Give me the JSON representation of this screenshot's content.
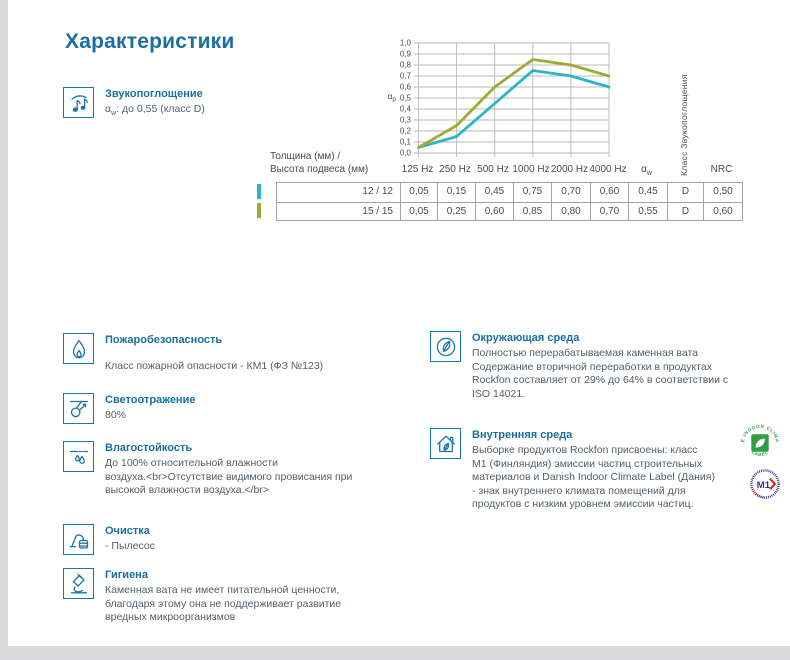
{
  "page": {
    "title": "Характеристики"
  },
  "sound": {
    "heading": "Звукопоглощение",
    "alpha_base": "α",
    "alpha_sub": "w",
    "value": ": до 0,55 (класс D)"
  },
  "chart_data": {
    "type": "line",
    "x": [
      "125 Hz",
      "250 Hz",
      "500 Hz",
      "1000 Hz",
      "2000 Hz",
      "4000 Hz"
    ],
    "series": [
      {
        "name": "12 / 12",
        "color": "#2cb6c3",
        "values": [
          0.05,
          0.15,
          0.45,
          0.75,
          0.7,
          0.6
        ]
      },
      {
        "name": "15 / 15",
        "color": "#a3a838",
        "values": [
          0.05,
          0.25,
          0.6,
          0.85,
          0.8,
          0.7
        ]
      }
    ],
    "ylabel_base": "α",
    "ylabel_sub": "p",
    "ylim": [
      0,
      1
    ],
    "ytick_step": 0.1,
    "ytick_labels": [
      "0,0",
      "0,1",
      "0,2",
      "0,3",
      "0,4",
      "0,5",
      "0,6",
      "0,7",
      "0,8",
      "0,9",
      "1,0"
    ],
    "grid": true,
    "right_axis_label": "Класс Звукопоглощения"
  },
  "table": {
    "corner_label_line1": "Толщина (мм) /",
    "corner_label_line2": "Высота подвеса (мм)",
    "headers": [
      "125 Hz",
      "250 Hz",
      "500 Hz",
      "1000 Hz",
      "2000 Hz",
      "4000 Hz"
    ],
    "alpha_header": {
      "base": "α",
      "sub": "w"
    },
    "vertical_header": "Класс Звукопоглощения",
    "nrc_header": "NRC",
    "rows": [
      {
        "label": "12 / 12",
        "color": "#2cb6c3",
        "values": [
          "0,05",
          "0,15",
          "0,45",
          "0,75",
          "0,70",
          "0,60",
          "0,45",
          "D",
          "0,50"
        ]
      },
      {
        "label": "15 / 15",
        "color": "#a3a838",
        "values": [
          "0,05",
          "0,25",
          "0,60",
          "0,85",
          "0,80",
          "0,70",
          "0,55",
          "D",
          "0,60"
        ]
      }
    ]
  },
  "sections": {
    "fire": {
      "heading": "Пожаробезопасность",
      "body": "Класс пожарной опасности - КМ1 (ФЗ №123)"
    },
    "light": {
      "heading": "Светоотражение",
      "body": "80%"
    },
    "moisture": {
      "heading": "Влагостойкость",
      "body": "До 100% относительной влажности\nвоздуха.<br>Отсутствие видимого провисания при\nвысокой влажности воздуха.</br>"
    },
    "cleaning": {
      "heading": "Очистка",
      "body": "-  Пылесос"
    },
    "hygiene": {
      "heading": "Гигиена",
      "body": "Каменная вата не имеет питательной ценности,\nблагодаря этому она не поддерживает развитие\nвредных микроорганизмов"
    },
    "environment": {
      "heading": "Окружающая среда",
      "body": "Полностью перерабатываемая каменная вата\nСодержание вторичной переработки в продуктах\nRockfon составляет от 29% до 64% в соответствии с\nISO 14021."
    },
    "indoor": {
      "heading": "Внутренняя среда",
      "body": "Выборке продуктов Rockfon присвоены: класс\nM1 (Финляндия) эмиссии частиц строительных\nматериалов и Danish Indoor Climate Label (Дания)\n- знак внутреннего климата помещений для\nпродуктов с низким уровнем эмиссии частиц."
    }
  },
  "badges": {
    "indoor_climate": {
      "ring_top": "THE INDOOR CLIMATE",
      "ring_bottom": "LABEL"
    },
    "m1": {
      "label": "M1"
    }
  }
}
